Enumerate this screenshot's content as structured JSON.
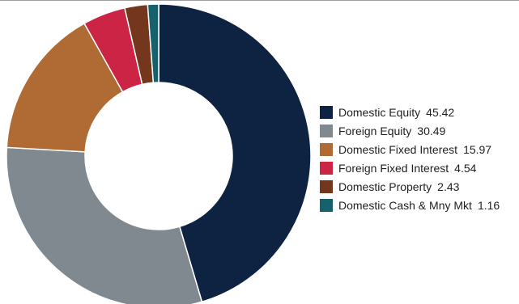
{
  "chart_data": {
    "type": "pie",
    "donut": true,
    "legend_position": "right",
    "categories": [
      "Domestic Equity",
      "Foreign Equity",
      "Domestic Fixed Interest",
      "Foreign Fixed Interest",
      "Domestic Property",
      "Domestic Cash & Mny Mkt"
    ],
    "values": [
      45.42,
      30.49,
      15.97,
      4.54,
      2.43,
      1.16
    ],
    "value_labels": [
      "45.42",
      "30.49",
      "15.97",
      "4.54",
      "2.43",
      "1.16"
    ],
    "colors": [
      "#0e2242",
      "#808890",
      "#b06a34",
      "#cc2444",
      "#74361c",
      "#16616c"
    ]
  }
}
